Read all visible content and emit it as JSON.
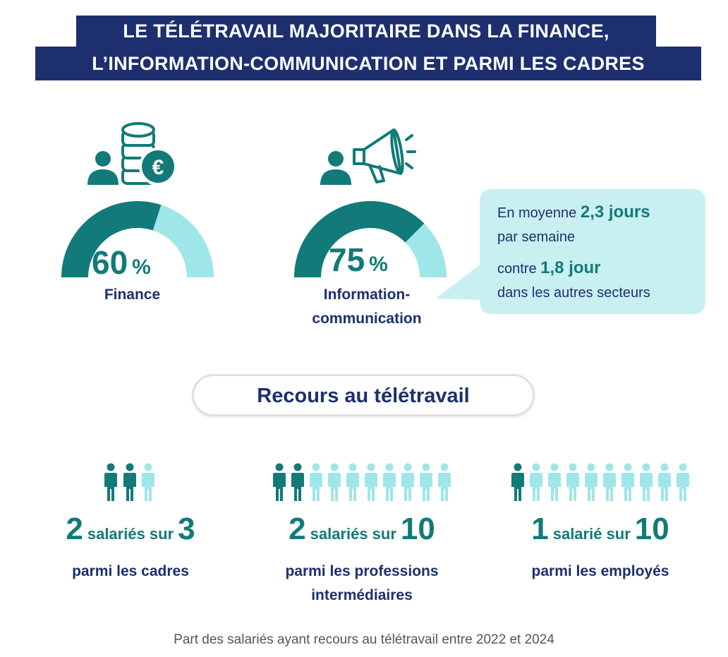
{
  "title": {
    "line1": "LE TÉLÉTRAVAIL MAJORITAIRE DANS LA FINANCE,",
    "line2": "L’INFORMATION-COMMUNICATION ET PARMI LES CADRES"
  },
  "gauges": [
    {
      "value": "60",
      "unit": "%",
      "fraction": 0.6,
      "label": "Finance",
      "icon": "finance-coins-euro-icon"
    },
    {
      "value": "75",
      "unit": "%",
      "fraction": 0.75,
      "label_line1": "Information-",
      "label_line2": "communication",
      "icon": "megaphone-icon"
    }
  ],
  "bubble": {
    "line1_prefix": "En moyenne ",
    "line1_highlight": "2,3 jours",
    "line2": "par semaine",
    "line3_prefix": "contre ",
    "line3_highlight": "1,8 jour",
    "line4": "dans les autres secteurs"
  },
  "section_title": "Recours au télétravail",
  "stats": [
    {
      "count": "2",
      "connector": "salariés sur",
      "total": "3",
      "highlighted": 2,
      "persons": 3,
      "label_line1": "parmi les cadres",
      "label_line2": ""
    },
    {
      "count": "2",
      "connector": "salariés sur",
      "total": "10",
      "highlighted": 2,
      "persons": 10,
      "label_line1": "parmi les professions",
      "label_line2": "intermédiaires"
    },
    {
      "count": "1",
      "connector": "salarié sur",
      "total": "10",
      "highlighted": 1,
      "persons": 10,
      "label_line1": "parmi les employés",
      "label_line2": ""
    }
  ],
  "footer": "Part des salariés ayant recours au télétravail entre 2022 et 2024",
  "colors": {
    "navy": "#1d2f6f",
    "teal": "#127a78",
    "light_teal": "#9fe6e8",
    "bubble": "#c8f0f1"
  }
}
